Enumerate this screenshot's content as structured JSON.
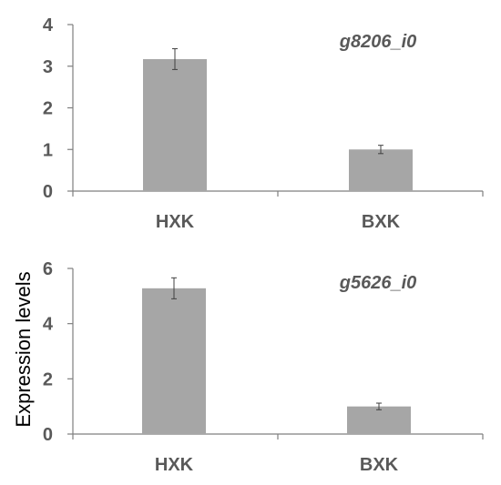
{
  "colors": {
    "bar": "#a6a6a6",
    "axis": "#7f7f7f",
    "text": "#595959"
  },
  "y_axis_title": "Expression levels",
  "chart_data": [
    {
      "type": "bar",
      "annotation": "g8206_i0",
      "categories": [
        "HXK",
        "BXK"
      ],
      "values": [
        3.17,
        1.0
      ],
      "errors": [
        0.25,
        0.1
      ],
      "ylim": [
        0,
        4
      ],
      "yticks": [
        0,
        1,
        2,
        3,
        4
      ],
      "ylabel": "",
      "grid": false
    },
    {
      "type": "bar",
      "annotation": "g5626_i0",
      "categories": [
        "HXK",
        "BXK"
      ],
      "values": [
        5.28,
        1.0
      ],
      "errors": [
        0.38,
        0.12
      ],
      "ylim": [
        0,
        6
      ],
      "yticks": [
        0,
        2,
        4,
        6
      ],
      "ylabel": "Expression levels",
      "grid": false
    }
  ]
}
